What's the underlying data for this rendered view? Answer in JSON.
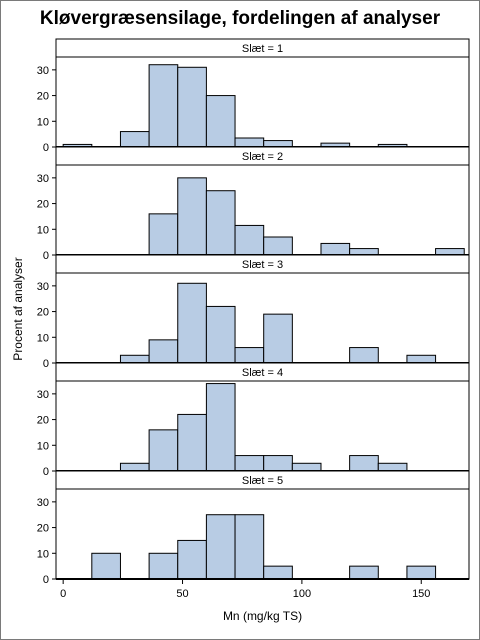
{
  "chart_data": {
    "type": "bar",
    "title": "Kløvergræsensilage, fordelingen af analyser",
    "xlabel": "Mn (mg/kg TS)",
    "ylabel": "Procent af analyser",
    "bin_width": 12,
    "bin_start": 0,
    "xlim": [
      -3,
      170
    ],
    "ylim": [
      0,
      35
    ],
    "xticks": [
      0,
      50,
      100,
      150
    ],
    "yticks": [
      0,
      10,
      20,
      30
    ],
    "panels": [
      {
        "label": "Slæt = 1",
        "bins": [
          {
            "x0": 0,
            "x1": 12,
            "value": 1
          },
          {
            "x0": 24,
            "x1": 36,
            "value": 6
          },
          {
            "x0": 36,
            "x1": 48,
            "value": 32
          },
          {
            "x0": 48,
            "x1": 60,
            "value": 31
          },
          {
            "x0": 60,
            "x1": 72,
            "value": 20
          },
          {
            "x0": 72,
            "x1": 84,
            "value": 3.5
          },
          {
            "x0": 84,
            "x1": 96,
            "value": 2.5
          },
          {
            "x0": 108,
            "x1": 120,
            "value": 1.5
          },
          {
            "x0": 132,
            "x1": 144,
            "value": 1
          }
        ]
      },
      {
        "label": "Slæt = 2",
        "bins": [
          {
            "x0": 36,
            "x1": 48,
            "value": 16
          },
          {
            "x0": 48,
            "x1": 60,
            "value": 30
          },
          {
            "x0": 60,
            "x1": 72,
            "value": 25
          },
          {
            "x0": 72,
            "x1": 84,
            "value": 11.5
          },
          {
            "x0": 84,
            "x1": 96,
            "value": 7
          },
          {
            "x0": 108,
            "x1": 120,
            "value": 4.5
          },
          {
            "x0": 120,
            "x1": 132,
            "value": 2.5
          },
          {
            "x0": 156,
            "x1": 168,
            "value": 2.5
          }
        ]
      },
      {
        "label": "Slæt = 3",
        "bins": [
          {
            "x0": 24,
            "x1": 36,
            "value": 3
          },
          {
            "x0": 36,
            "x1": 48,
            "value": 9
          },
          {
            "x0": 48,
            "x1": 60,
            "value": 31
          },
          {
            "x0": 60,
            "x1": 72,
            "value": 22
          },
          {
            "x0": 72,
            "x1": 84,
            "value": 6
          },
          {
            "x0": 84,
            "x1": 96,
            "value": 19
          },
          {
            "x0": 120,
            "x1": 132,
            "value": 6
          },
          {
            "x0": 144,
            "x1": 156,
            "value": 3
          }
        ]
      },
      {
        "label": "Slæt = 4",
        "bins": [
          {
            "x0": 24,
            "x1": 36,
            "value": 3
          },
          {
            "x0": 36,
            "x1": 48,
            "value": 16
          },
          {
            "x0": 48,
            "x1": 60,
            "value": 22
          },
          {
            "x0": 60,
            "x1": 72,
            "value": 34
          },
          {
            "x0": 72,
            "x1": 84,
            "value": 6
          },
          {
            "x0": 84,
            "x1": 96,
            "value": 6
          },
          {
            "x0": 96,
            "x1": 108,
            "value": 3
          },
          {
            "x0": 120,
            "x1": 132,
            "value": 6
          },
          {
            "x0": 132,
            "x1": 144,
            "value": 3
          }
        ]
      },
      {
        "label": "Slæt = 5",
        "bins": [
          {
            "x0": 12,
            "x1": 24,
            "value": 10
          },
          {
            "x0": 36,
            "x1": 48,
            "value": 10
          },
          {
            "x0": 48,
            "x1": 60,
            "value": 15
          },
          {
            "x0": 60,
            "x1": 72,
            "value": 25
          },
          {
            "x0": 72,
            "x1": 84,
            "value": 25
          },
          {
            "x0": 84,
            "x1": 96,
            "value": 5
          },
          {
            "x0": 120,
            "x1": 132,
            "value": 5
          },
          {
            "x0": 144,
            "x1": 156,
            "value": 5
          }
        ]
      }
    ],
    "bar_fill": "#b8cce4",
    "bar_stroke": "#000000",
    "grid": false
  }
}
